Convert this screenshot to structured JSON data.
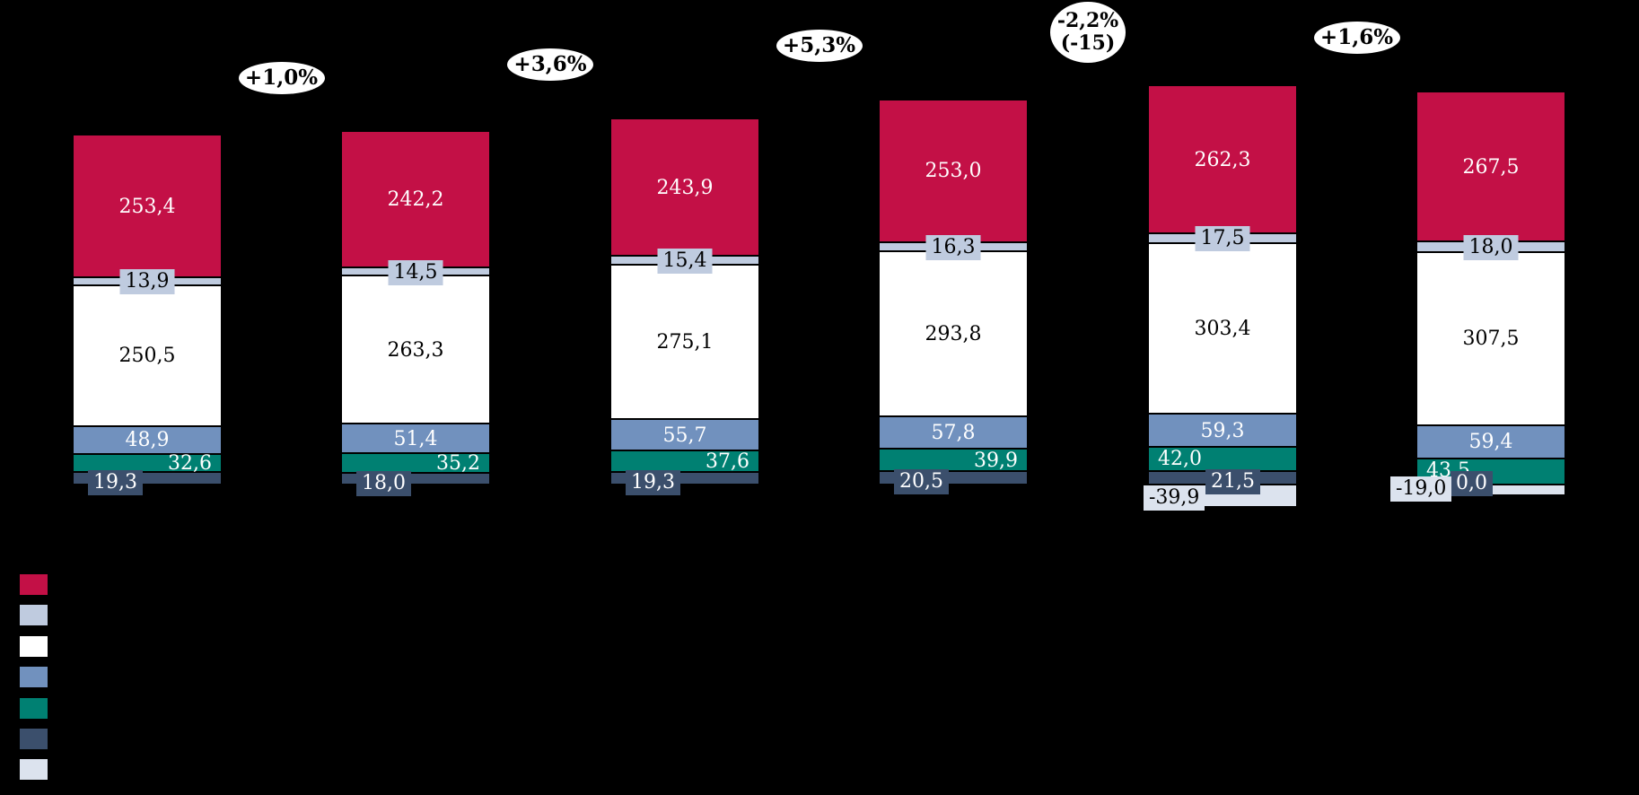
{
  "chart_data": {
    "type": "bar",
    "stacked": true,
    "orientation": "vertical",
    "background": "#000000",
    "value_format": "decimal-comma",
    "grid": false,
    "axes_visible": false,
    "series_order_top_to_bottom": [
      "crimson",
      "steel-strip",
      "white",
      "blue",
      "teal",
      "navy"
    ],
    "negative_series": "lightgray",
    "colors": {
      "crimson": "#C31046",
      "steel-strip": "#BFCBDF",
      "white": "#FFFFFF",
      "blue": "#7191BE",
      "teal": "#008072",
      "navy": "#3B4F6C",
      "lightgray": "#DCE3EE"
    },
    "bars": [
      {
        "values": [
          "253,4",
          "13,9",
          "250,5",
          "48,9",
          "32,6",
          "19,3"
        ],
        "negative": null
      },
      {
        "values": [
          "242,2",
          "14,5",
          "263,3",
          "51,4",
          "35,2",
          "18,0"
        ],
        "negative": null
      },
      {
        "values": [
          "243,9",
          "15,4",
          "275,1",
          "55,7",
          "37,6",
          "19,3"
        ],
        "negative": null
      },
      {
        "values": [
          "253,0",
          "16,3",
          "293,8",
          "57,8",
          "39,9",
          "20,5"
        ],
        "negative": null
      },
      {
        "values": [
          "262,3",
          "17,5",
          "303,4",
          "59,3",
          "42,0",
          "21,5"
        ],
        "negative": "-39,9"
      },
      {
        "values": [
          "267,5",
          "18,0",
          "307,5",
          "59,4",
          "43,5",
          "0,0"
        ],
        "negative": "-19,0"
      }
    ],
    "growth_bubbles": [
      {
        "lines": [
          "+1,0%"
        ]
      },
      {
        "lines": [
          "+3,6%"
        ]
      },
      {
        "lines": [
          "+5,3%"
        ]
      },
      {
        "lines": [
          "-2,2%",
          "(-15)"
        ]
      },
      {
        "lines": [
          "+1,6%"
        ]
      }
    ],
    "legend_swatches": [
      "#C31046",
      "#BFCBDF",
      "#FFFFFF",
      "#7191BE",
      "#008072",
      "#3B4F6C",
      "#DCE3EE"
    ]
  }
}
